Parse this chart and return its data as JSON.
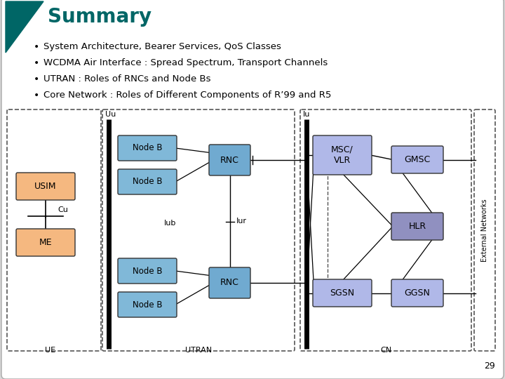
{
  "title": "Summary",
  "title_color": "#006666",
  "bullets": [
    "System Architecture, Bearer Services, QoS Classes",
    "WCDMA Air Interface : Spread Spectrum, Transport Channels",
    "UTRAN : Roles of RNCs and Node Bs",
    "Core Network : Roles of Different Components of R’99 and R5"
  ],
  "node_b_color": "#80b8d8",
  "rnc_color": "#70aad0",
  "msc_vlr_color": "#b0b8e8",
  "gmsc_color": "#b0b8e8",
  "hlr_color": "#9090c0",
  "sgsn_color": "#b0b8e8",
  "ggsn_color": "#b0b8e8",
  "usim_color": "#f5b880",
  "me_color": "#f5b880",
  "page_number": "29"
}
